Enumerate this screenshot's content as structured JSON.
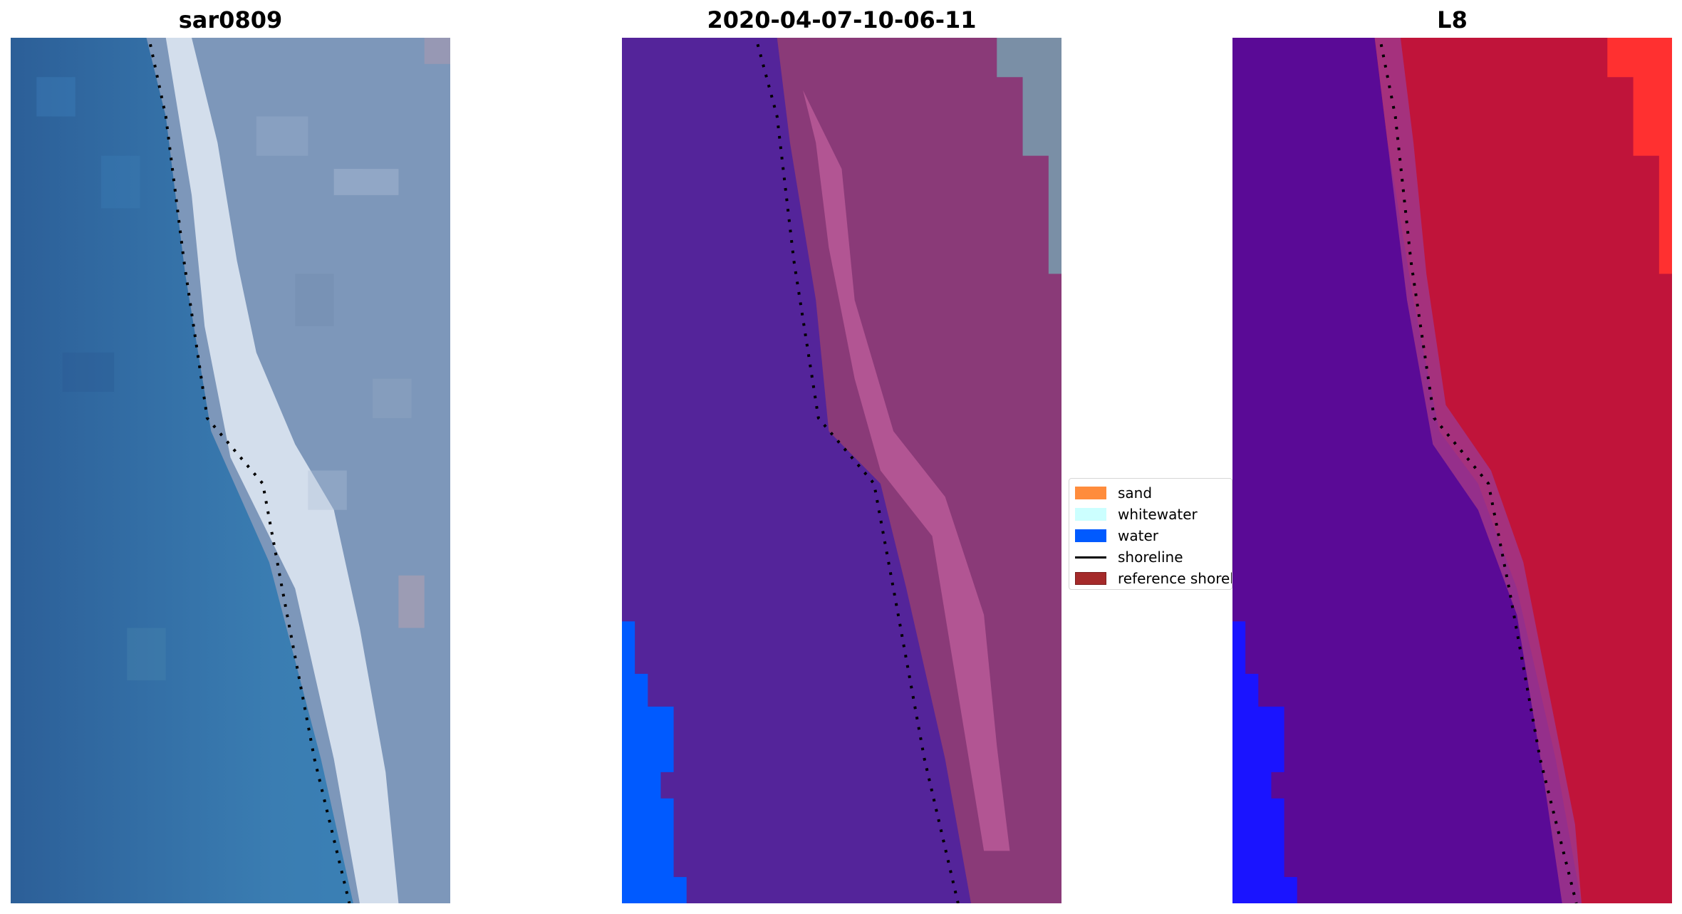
{
  "panels": [
    {
      "title": "sar0809",
      "style": "rgb"
    },
    {
      "title": "2020-04-07-10-06-11",
      "style": "classified"
    },
    {
      "title": "L8",
      "style": "index"
    }
  ],
  "legend": [
    {
      "label": "sand",
      "kind": "patch",
      "color": "#ff8c3c"
    },
    {
      "label": "whitewater",
      "kind": "patch",
      "color": "#ccffff"
    },
    {
      "label": "water",
      "kind": "patch",
      "color": "#005aff"
    },
    {
      "label": "shoreline",
      "kind": "line",
      "color": "#000000"
    },
    {
      "label": "reference shoreline",
      "kind": "patch",
      "color": "#a52a2a"
    }
  ],
  "colors": {
    "ocean": "#2f6aa3",
    "ocean_light": "#3f86bd",
    "land_blue": "#7a93b5",
    "beach": "#dfe6f2",
    "class_water_purple": "#54249a",
    "class_land_pink": "#8a3a78",
    "class_land_pink_light": "#b85a98",
    "class_water_blue": "#005aff",
    "class_land_gray": "#7a8fa6",
    "index_purple": "#5a0a96",
    "index_red": "#c0143a",
    "index_bright_red": "#ff3030",
    "index_blue": "#1a14ff",
    "shoreline_dots": "#000000"
  }
}
